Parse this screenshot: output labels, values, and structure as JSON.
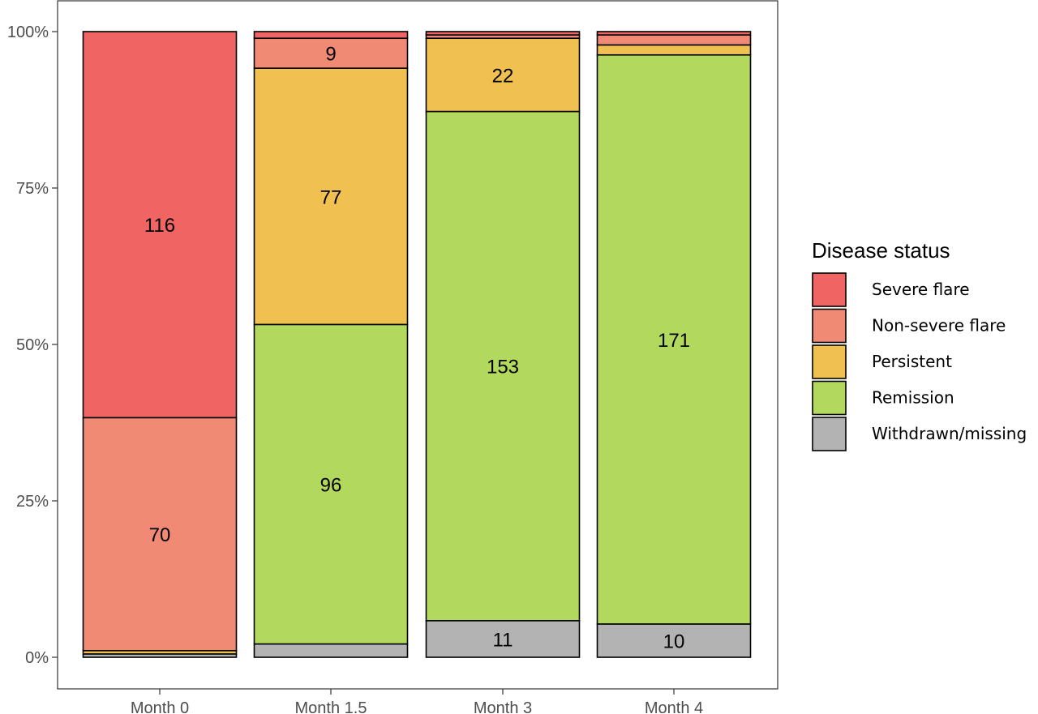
{
  "chart_data": {
    "type": "bar",
    "stacked": true,
    "normalized": true,
    "categories": [
      "Month 0",
      "Month 1.5",
      "Month 3",
      "Month 4"
    ],
    "ylim": [
      0,
      1
    ],
    "y_ticks": [
      0,
      0.25,
      0.5,
      0.75,
      1
    ],
    "y_tick_labels": [
      "0%",
      "25%",
      "50%",
      "75%",
      "100%"
    ],
    "legend": {
      "title": "Disease status",
      "position": "right"
    },
    "series": [
      {
        "name": "Withdrawn/missing",
        "color": "#b3b3b3",
        "values": [
          1,
          4,
          11,
          10
        ],
        "labels": [
          "",
          "",
          "11",
          "10"
        ]
      },
      {
        "name": "Remission",
        "color": "#b2d85e",
        "values": [
          0,
          96,
          153,
          171
        ],
        "labels": [
          "",
          "96",
          "153",
          "171"
        ]
      },
      {
        "name": "Persistent",
        "color": "#f0c050",
        "values": [
          1,
          77,
          22,
          3
        ],
        "labels": [
          "",
          "77",
          "22",
          ""
        ]
      },
      {
        "name": "Non-severe flare",
        "color": "#f08a74",
        "values": [
          70,
          9,
          1,
          3
        ],
        "labels": [
          "70",
          "9",
          "",
          ""
        ]
      },
      {
        "name": "Severe flare",
        "color": "#f06464",
        "values": [
          116,
          2,
          1,
          1
        ],
        "labels": [
          "116",
          "",
          "",
          ""
        ]
      }
    ],
    "legend_order": [
      "Severe flare",
      "Non-severe flare",
      "Persistent",
      "Remission",
      "Withdrawn/missing"
    ],
    "grid": false
  }
}
